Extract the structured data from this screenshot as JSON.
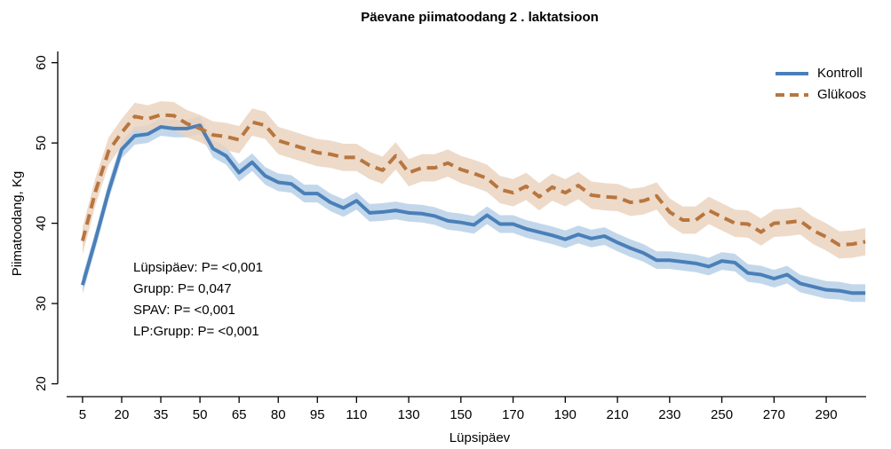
{
  "chart_data": {
    "type": "line",
    "title": "Päevane piimatoodang 2 . laktatsioon",
    "x_label": "Lüpsipäev",
    "y_label": "Piimatoodang, Kg",
    "annotations": [
      "Lüpsipäev: P= <0,001",
      "Grupp: P= 0,047",
      "SPAV: P= <0,001",
      "LP:Grupp: P= <0,001"
    ],
    "x": [
      5,
      10,
      15,
      20,
      25,
      30,
      35,
      40,
      45,
      50,
      55,
      60,
      65,
      70,
      75,
      80,
      85,
      90,
      95,
      100,
      105,
      110,
      115,
      120,
      125,
      130,
      135,
      140,
      145,
      150,
      155,
      160,
      165,
      170,
      175,
      180,
      185,
      190,
      195,
      200,
      205,
      210,
      215,
      220,
      225,
      230,
      235,
      240,
      245,
      250,
      255,
      260,
      265,
      270,
      275,
      280,
      285,
      290,
      295,
      300,
      305
    ],
    "series": [
      {
        "name": "Kontroll",
        "color": "#4a7fb8",
        "band_color": "#b9d0e8",
        "dashed": false,
        "error": 1.1,
        "values": [
          32.3,
          38,
          44,
          49.2,
          50.9,
          51.1,
          52,
          51.8,
          51.8,
          52.2,
          49.3,
          48.4,
          46.3,
          47.6,
          45.9,
          45.1,
          44.9,
          43.7,
          43.7,
          42.6,
          41.9,
          42.8,
          41.3,
          41.4,
          41.6,
          41.3,
          41.2,
          40.9,
          40.3,
          40.1,
          39.8,
          41,
          39.9,
          39.9,
          39.3,
          38.9,
          38.5,
          38,
          38.6,
          38.1,
          38.4,
          37.6,
          36.9,
          36.3,
          35.4,
          35.4,
          35.2,
          35,
          34.6,
          35.3,
          35.1,
          33.8,
          33.6,
          33.1,
          33.6,
          32.5,
          32.1,
          31.7,
          31.6,
          31.3,
          31.3
        ]
      },
      {
        "name": "Glükoos",
        "color": "#b8763f",
        "band_color": "#ebd3c0",
        "dashed": true,
        "error": 1.7,
        "values": [
          37.8,
          44,
          49,
          51.3,
          53.3,
          53,
          53.5,
          53.4,
          52.4,
          51.8,
          51,
          50.8,
          50.4,
          52.6,
          52.2,
          50.3,
          49.8,
          49.3,
          48.8,
          48.6,
          48.2,
          48.2,
          47.2,
          46.6,
          48.4,
          46.3,
          46.9,
          46.9,
          47.5,
          46.7,
          46.2,
          45.6,
          44.2,
          43.8,
          44.6,
          43.3,
          44.5,
          43.8,
          44.7,
          43.5,
          43.3,
          43.2,
          42.6,
          42.8,
          43.4,
          41.4,
          40.4,
          40.4,
          41.6,
          40.8,
          40,
          39.9,
          38.9,
          40,
          40.1,
          40.3,
          39.1,
          38.3,
          37.3,
          37.4,
          37.7
        ]
      }
    ],
    "xlim": [
      -1.1,
      305.3
    ],
    "xticks": [
      5,
      20,
      35,
      50,
      65,
      80,
      95,
      110,
      130,
      150,
      170,
      190,
      210,
      230,
      250,
      270,
      290
    ],
    "ylim": [
      18.4,
      61.4
    ],
    "yticks": [
      20,
      30,
      40,
      50,
      60
    ],
    "grid": false,
    "legend": "top-right"
  }
}
